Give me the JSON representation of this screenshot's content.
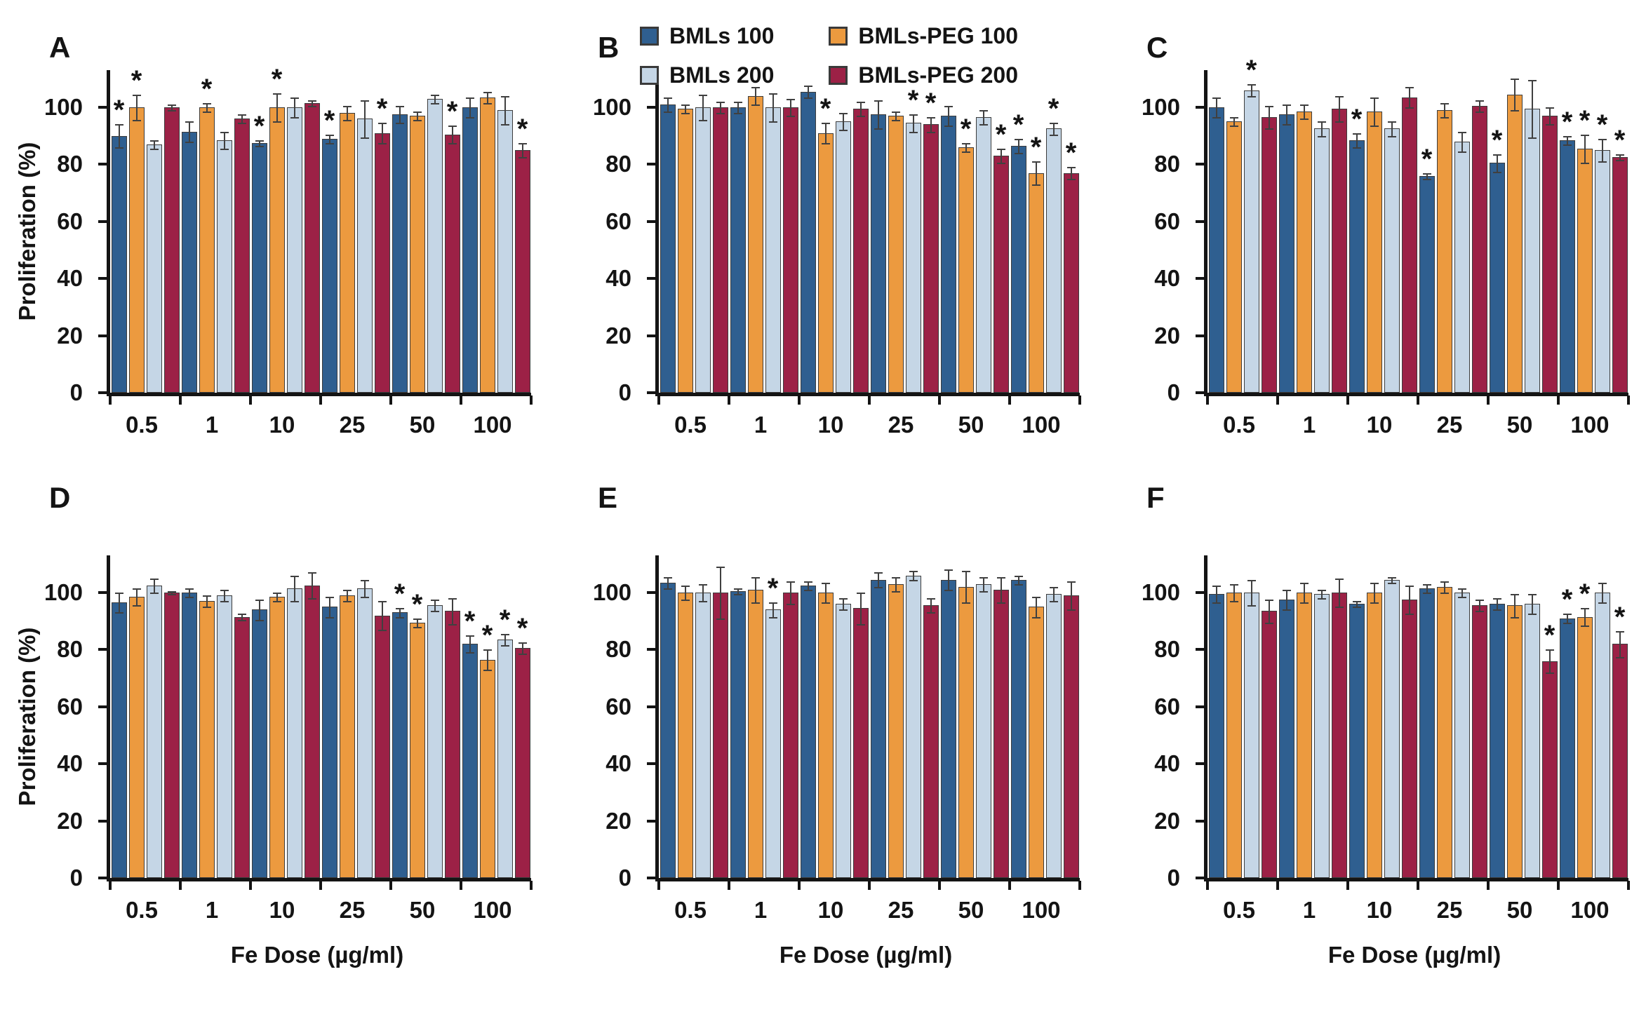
{
  "legend": {
    "items": [
      {
        "label": "BMLs 100",
        "color": "#2F5F90"
      },
      {
        "label": "BMLs-PEG 100",
        "color": "#EC9A3F"
      },
      {
        "label": "BMLs 200",
        "color": "#C5D6E6"
      },
      {
        "label": "BMLs-PEG 200",
        "color": "#9C2146"
      }
    ]
  },
  "axes": {
    "y_ticks": [
      0,
      20,
      40,
      60,
      80,
      100
    ],
    "y_max": 113,
    "y_label": "Proliferation (%)",
    "x_label": "Fe Dose (µg/ml)"
  },
  "chart_data": [
    {
      "panel": "A",
      "type": "bar",
      "categories": [
        "0.5",
        "1",
        "10",
        "25",
        "50",
        "100"
      ],
      "ylabel": "Proliferation (%)",
      "xlabel": "",
      "ylim": [
        0,
        113
      ],
      "grid": false,
      "legend_position": "top-center",
      "series": [
        {
          "name": "BMLs 100",
          "color": "#2F5F90",
          "values": [
            90,
            91.5,
            87.5,
            89,
            97.5,
            100
          ],
          "errors": [
            4,
            3.5,
            1,
            1.5,
            3,
            3.5
          ],
          "sig": [
            1,
            0,
            1,
            1,
            0,
            0
          ]
        },
        {
          "name": "BMLs-PEG 100",
          "color": "#EC9A3F",
          "values": [
            100,
            100,
            100,
            98,
            97,
            103.5
          ],
          "errors": [
            4.5,
            1.5,
            5,
            2.5,
            1.5,
            2
          ],
          "sig": [
            1,
            1,
            1,
            0,
            0,
            0
          ]
        },
        {
          "name": "BMLs 200",
          "color": "#C5D6E6",
          "values": [
            87,
            88.5,
            100,
            96,
            103,
            99
          ],
          "errors": [
            1.5,
            3,
            3.5,
            6.5,
            1.5,
            5
          ],
          "sig": [
            0,
            0,
            0,
            0,
            0,
            0
          ]
        },
        {
          "name": "BMLs-PEG 200",
          "color": "#9C2146",
          "values": [
            100,
            96,
            101.5,
            91,
            90.5,
            85
          ],
          "errors": [
            1,
            1.5,
            1,
            3.5,
            3,
            2.5
          ],
          "sig": [
            0,
            0,
            0,
            1,
            1,
            1
          ]
        }
      ]
    },
    {
      "panel": "B",
      "type": "bar",
      "categories": [
        "0.5",
        "1",
        "10",
        "25",
        "50",
        "100"
      ],
      "ylabel": "",
      "xlabel": "",
      "ylim": [
        0,
        113
      ],
      "grid": false,
      "series": [
        {
          "name": "BMLs 100",
          "color": "#2F5F90",
          "values": [
            101,
            100,
            105.5,
            97.5,
            97,
            86.5
          ],
          "errors": [
            2.5,
            2,
            2,
            5,
            3.5,
            2.5
          ],
          "sig": [
            0,
            0,
            0,
            0,
            0,
            1
          ]
        },
        {
          "name": "BMLs-PEG 100",
          "color": "#EC9A3F",
          "values": [
            99.5,
            104,
            91,
            97,
            86,
            77
          ],
          "errors": [
            1.5,
            3,
            3.5,
            1.5,
            1.5,
            4
          ],
          "sig": [
            0,
            0,
            1,
            0,
            1,
            1
          ]
        },
        {
          "name": "BMLs 200",
          "color": "#C5D6E6",
          "values": [
            100,
            100,
            95,
            94.5,
            96.5,
            92.5
          ],
          "errors": [
            4.5,
            5,
            3,
            3,
            2.5,
            2
          ],
          "sig": [
            0,
            0,
            0,
            1,
            0,
            1
          ]
        },
        {
          "name": "BMLs-PEG 200",
          "color": "#9C2146",
          "values": [
            100,
            100,
            99.5,
            94,
            83,
            77
          ],
          "errors": [
            2,
            3,
            2.5,
            2.5,
            2.5,
            2
          ],
          "sig": [
            0,
            0,
            0,
            1,
            1,
            1
          ]
        }
      ]
    },
    {
      "panel": "C",
      "type": "bar",
      "categories": [
        "0.5",
        "1",
        "10",
        "25",
        "50",
        "100"
      ],
      "ylabel": "",
      "xlabel": "",
      "ylim": [
        0,
        113
      ],
      "grid": false,
      "series": [
        {
          "name": "BMLs 100",
          "color": "#2F5F90",
          "values": [
            100,
            97.5,
            88.5,
            76,
            80.5,
            88.5
          ],
          "errors": [
            3.5,
            3.5,
            2.5,
            1,
            3,
            1.5
          ],
          "sig": [
            0,
            0,
            1,
            1,
            1,
            1
          ]
        },
        {
          "name": "BMLs-PEG 100",
          "color": "#EC9A3F",
          "values": [
            95,
            98.5,
            98.5,
            99,
            104.5,
            85.5
          ],
          "errors": [
            1.5,
            2.5,
            5,
            2.5,
            5.5,
            5
          ],
          "sig": [
            0,
            0,
            0,
            0,
            0,
            1
          ]
        },
        {
          "name": "BMLs 200",
          "color": "#C5D6E6",
          "values": [
            106,
            92.5,
            92.5,
            88,
            99.5,
            85
          ],
          "errors": [
            2,
            2.5,
            2.5,
            3.5,
            10,
            4
          ],
          "sig": [
            1,
            0,
            0,
            0,
            0,
            1
          ]
        },
        {
          "name": "BMLs-PEG 200",
          "color": "#9C2146",
          "values": [
            96.5,
            99.5,
            103.5,
            100.5,
            97,
            82.5
          ],
          "errors": [
            4,
            4.5,
            3.5,
            2,
            3,
            1
          ],
          "sig": [
            0,
            0,
            0,
            0,
            0,
            1
          ]
        }
      ]
    },
    {
      "panel": "D",
      "type": "bar",
      "categories": [
        "0.5",
        "1",
        "10",
        "25",
        "50",
        "100"
      ],
      "ylabel": "Proliferation (%)",
      "xlabel": "Fe Dose (µg/ml)",
      "ylim": [
        0,
        113
      ],
      "grid": false,
      "series": [
        {
          "name": "BMLs 100",
          "color": "#2F5F90",
          "values": [
            96.5,
            100,
            94,
            95,
            93,
            82
          ],
          "errors": [
            3.5,
            1.5,
            3.5,
            3.5,
            1.5,
            3
          ],
          "sig": [
            0,
            0,
            0,
            0,
            1,
            1
          ]
        },
        {
          "name": "BMLs-PEG 100",
          "color": "#EC9A3F",
          "values": [
            98.5,
            97,
            98.5,
            99,
            89.5,
            76.5
          ],
          "errors": [
            3,
            2,
            1.5,
            2,
            1.5,
            3.5
          ],
          "sig": [
            0,
            0,
            0,
            0,
            1,
            1
          ]
        },
        {
          "name": "BMLs 200",
          "color": "#C5D6E6",
          "values": [
            102.5,
            99,
            101.5,
            101.5,
            95.5,
            83.5
          ],
          "errors": [
            2.5,
            2,
            4.5,
            3,
            2,
            2
          ],
          "sig": [
            0,
            0,
            0,
            0,
            0,
            1
          ]
        },
        {
          "name": "BMLs-PEG 200",
          "color": "#9C2146",
          "values": [
            100,
            91.5,
            102.5,
            92,
            93.5,
            80.5
          ],
          "errors": [
            0.5,
            1,
            4.5,
            5,
            4.5,
            2
          ],
          "sig": [
            0,
            0,
            0,
            0,
            0,
            1
          ]
        }
      ]
    },
    {
      "panel": "E",
      "type": "bar",
      "categories": [
        "0.5",
        "1",
        "10",
        "25",
        "50",
        "100"
      ],
      "ylabel": "",
      "xlabel": "Fe Dose (µg/ml)",
      "ylim": [
        0,
        113
      ],
      "grid": false,
      "series": [
        {
          "name": "BMLs 100",
          "color": "#2F5F90",
          "values": [
            103.5,
            100.5,
            102.5,
            104.5,
            104.5,
            104.5
          ],
          "errors": [
            2,
            1,
            1.5,
            2.5,
            3.5,
            1.5
          ],
          "sig": [
            0,
            0,
            0,
            0,
            0,
            0
          ]
        },
        {
          "name": "BMLs-PEG 100",
          "color": "#EC9A3F",
          "values": [
            100,
            101,
            100,
            103,
            102,
            95
          ],
          "errors": [
            2.5,
            4.5,
            3.5,
            2.5,
            5.5,
            3.5
          ],
          "sig": [
            0,
            0,
            0,
            0,
            0,
            0
          ]
        },
        {
          "name": "BMLs 200",
          "color": "#C5D6E6",
          "values": [
            100,
            94,
            96,
            106,
            103,
            99.5
          ],
          "errors": [
            3,
            2.5,
            2,
            1.5,
            2.5,
            2.5
          ],
          "sig": [
            0,
            1,
            0,
            0,
            0,
            0
          ]
        },
        {
          "name": "BMLs-PEG 200",
          "color": "#9C2146",
          "values": [
            100,
            100,
            94.5,
            95.5,
            101,
            99
          ],
          "errors": [
            9,
            4,
            5.5,
            2.5,
            4.5,
            5
          ],
          "sig": [
            0,
            0,
            0,
            0,
            0,
            0
          ]
        }
      ]
    },
    {
      "panel": "F",
      "type": "bar",
      "categories": [
        "0.5",
        "1",
        "10",
        "25",
        "50",
        "100"
      ],
      "ylabel": "",
      "xlabel": "Fe Dose (µg/ml)",
      "ylim": [
        0,
        113
      ],
      "grid": false,
      "series": [
        {
          "name": "BMLs 100",
          "color": "#2F5F90",
          "values": [
            99.5,
            97.5,
            96,
            101.5,
            96,
            91
          ],
          "errors": [
            3,
            3.5,
            1,
            1.5,
            2,
            1.5
          ],
          "sig": [
            0,
            0,
            0,
            0,
            0,
            1
          ]
        },
        {
          "name": "BMLs-PEG 100",
          "color": "#EC9A3F",
          "values": [
            100,
            100,
            100,
            102,
            95.5,
            91.5
          ],
          "errors": [
            3,
            3.5,
            3.5,
            2,
            4,
            3
          ],
          "sig": [
            0,
            0,
            0,
            0,
            0,
            1
          ]
        },
        {
          "name": "BMLs 200",
          "color": "#C5D6E6",
          "values": [
            100,
            99.5,
            104.5,
            100,
            96,
            100
          ],
          "errors": [
            4.5,
            1.5,
            1,
            1.5,
            3.5,
            3.5
          ],
          "sig": [
            0,
            0,
            0,
            0,
            0,
            0
          ]
        },
        {
          "name": "BMLs-PEG 200",
          "color": "#9C2146",
          "values": [
            93.5,
            100,
            97.5,
            95.5,
            76,
            82
          ],
          "errors": [
            4,
            5,
            5,
            2,
            4,
            4.5
          ],
          "sig": [
            0,
            0,
            0,
            0,
            1,
            1
          ]
        }
      ]
    }
  ]
}
